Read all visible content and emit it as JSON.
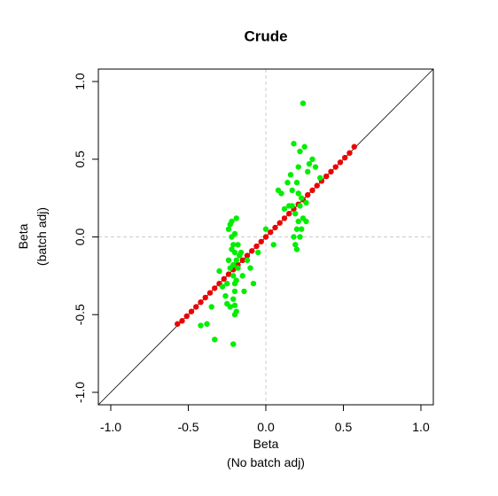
{
  "chart_data": {
    "type": "scatter",
    "title": "Crude",
    "xlabel": [
      "Beta",
      "(No batch adj)"
    ],
    "ylabel": [
      "Beta",
      "(batch adj)"
    ],
    "xlim": [
      -1.08,
      1.08
    ],
    "ylim": [
      -1.08,
      1.08
    ],
    "xticks": [
      {
        "value": -1,
        "label": "-1.0"
      },
      -0.5,
      {
        "value": 0,
        "label": "0.0"
      },
      0.5,
      {
        "value": 1,
        "label": "1.0"
      }
    ],
    "yticks": [
      {
        "value": -1,
        "label": "-1.0"
      },
      -0.5,
      {
        "value": 0,
        "label": "0.0"
      },
      0.5,
      {
        "value": 1,
        "label": "1.0"
      }
    ],
    "series": [
      {
        "color": "#ee0000",
        "x": [
          -0.57,
          -0.54,
          -0.51,
          -0.48,
          -0.45,
          -0.42,
          -0.39,
          -0.36,
          -0.33,
          -0.3,
          -0.27,
          -0.24,
          -0.21,
          -0.18,
          -0.15,
          -0.12,
          -0.09,
          -0.06,
          -0.03,
          0,
          0.03,
          0.06,
          0.09,
          0.12,
          0.15,
          0.18,
          0.21,
          0.24,
          0.27,
          0.3,
          0.33,
          0.36,
          0.39,
          0.42,
          0.45,
          0.48,
          0.51,
          0.54,
          0.57
        ],
        "values": [
          -0.56,
          -0.54,
          -0.51,
          -0.48,
          -0.45,
          -0.42,
          -0.39,
          -0.36,
          -0.33,
          -0.3,
          -0.27,
          -0.24,
          -0.21,
          -0.18,
          -0.15,
          -0.12,
          -0.09,
          -0.06,
          -0.03,
          0,
          0.03,
          0.06,
          0.09,
          0.12,
          0.15,
          0.18,
          0.21,
          0.24,
          0.27,
          0.3,
          0.33,
          0.36,
          0.39,
          0.42,
          0.45,
          0.48,
          0.51,
          0.54,
          0.58
        ]
      },
      {
        "color": "#00ee00",
        "x": [
          -0.24,
          -0.22,
          -0.21,
          -0.2,
          -0.19,
          -0.23,
          -0.21,
          -0.2,
          -0.18,
          -0.22,
          -0.19,
          -0.2,
          -0.21,
          -0.23,
          -0.18,
          -0.17,
          -0.2,
          -0.22,
          -0.19,
          -0.21,
          -0.25,
          -0.24,
          -0.16,
          -0.15,
          -0.2,
          -0.19,
          -0.23,
          -0.26,
          -0.28,
          -0.3,
          -0.12,
          -0.1,
          -0.08,
          -0.05,
          -0.14,
          -0.21,
          -0.33,
          -0.38,
          -0.42,
          -0.2,
          -0.25,
          -0.35,
          0.24,
          0.18,
          0.2,
          0.21,
          0.19,
          0.22,
          0.23,
          0.17,
          0.2,
          0.16,
          0.21,
          0.22,
          0.18,
          0.25,
          0.27,
          0.15,
          0.12,
          0.1,
          0.08,
          0.14,
          0.3,
          0.32,
          0.35,
          0.28,
          0.26,
          0.24,
          0.19,
          0.2,
          0.21,
          0.23,
          0.17,
          0.0,
          0.05,
          0.22,
          0.26
        ],
        "values": [
          0.05,
          0.0,
          -0.05,
          -0.1,
          -0.15,
          -0.2,
          -0.25,
          -0.3,
          -0.05,
          0.1,
          0.12,
          -0.35,
          -0.4,
          -0.45,
          -0.2,
          -0.12,
          0.02,
          -0.08,
          -0.28,
          -0.18,
          -0.3,
          -0.15,
          -0.1,
          -0.25,
          -0.5,
          -0.48,
          0.08,
          -0.38,
          -0.32,
          -0.22,
          -0.15,
          -0.2,
          -0.3,
          -0.1,
          -0.35,
          -0.69,
          -0.66,
          -0.56,
          -0.57,
          -0.44,
          -0.43,
          -0.45,
          0.86,
          0.0,
          0.05,
          0.1,
          0.15,
          0.2,
          0.25,
          0.3,
          0.35,
          0.4,
          0.45,
          0.55,
          0.6,
          0.58,
          0.42,
          0.2,
          0.18,
          0.28,
          0.3,
          0.35,
          0.5,
          0.45,
          0.38,
          0.47,
          0.22,
          0.12,
          -0.05,
          -0.08,
          0.28,
          0.05,
          0.2,
          0.05,
          -0.05,
          0.0,
          0.1
        ]
      }
    ]
  }
}
